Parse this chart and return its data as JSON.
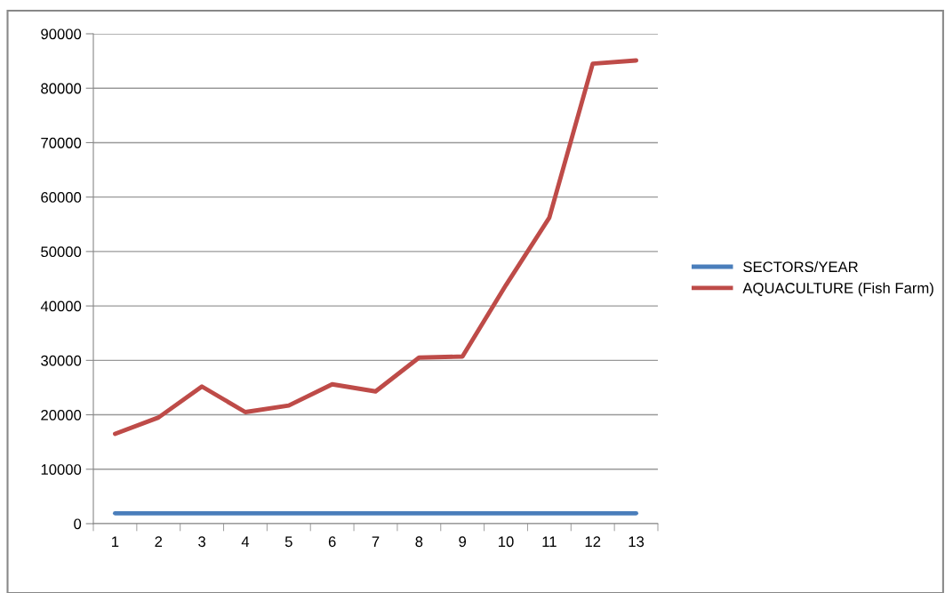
{
  "chart_data": {
    "type": "line",
    "categories": [
      "1",
      "2",
      "3",
      "4",
      "5",
      "6",
      "7",
      "8",
      "9",
      "10",
      "11",
      "12",
      "13"
    ],
    "series": [
      {
        "name": "SECTORS/YEAR",
        "color": "#4a7ebb",
        "values": [
          1900,
          1900,
          1900,
          1900,
          1900,
          1900,
          1900,
          1900,
          1900,
          1900,
          1900,
          1900,
          1900
        ]
      },
      {
        "name": "AQUACULTURE (Fish Farm)",
        "color": "#be4b48",
        "values": [
          16500,
          19500,
          25200,
          20500,
          21700,
          25600,
          24300,
          30500,
          30700,
          43800,
          56200,
          84500,
          85100
        ]
      }
    ],
    "ylim": [
      0,
      90000
    ],
    "yticks": [
      0,
      10000,
      20000,
      30000,
      40000,
      50000,
      60000,
      70000,
      80000,
      90000
    ],
    "grid": "y",
    "legend": "right",
    "marker": "none",
    "line_style": "solid"
  }
}
